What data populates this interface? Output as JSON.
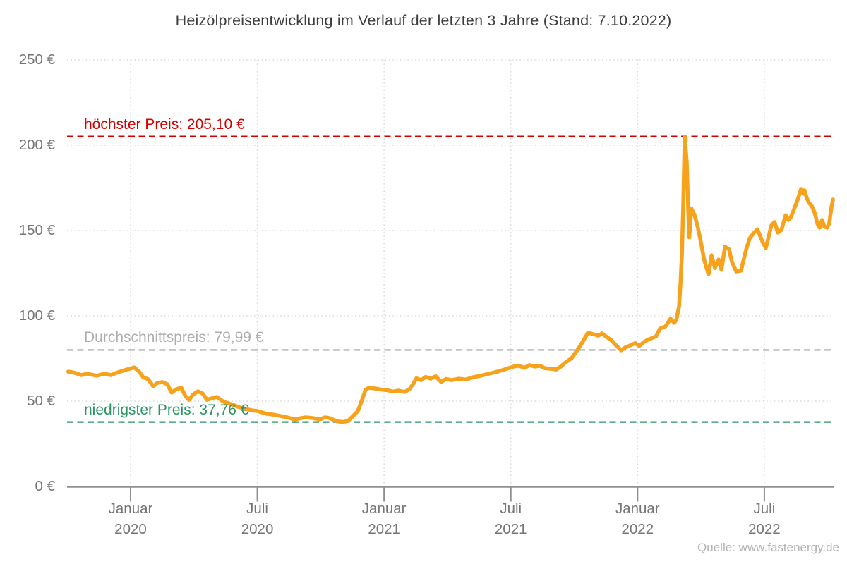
{
  "chart_data": {
    "type": "line",
    "title": "Heizölpreisentwicklung im Verlauf der letzten 3 Jahre (Stand: 7.10.2022)",
    "source": "Quelle: www.fastenergy.de",
    "x_axis": {
      "unit": "months since October 2019",
      "range": [
        0,
        36.3
      ],
      "ticks": [
        {
          "t": 3,
          "month": "Januar",
          "year": "2020"
        },
        {
          "t": 9,
          "month": "Juli",
          "year": "2020"
        },
        {
          "t": 15,
          "month": "Januar",
          "year": "2021"
        },
        {
          "t": 21,
          "month": "Juli",
          "year": "2021"
        },
        {
          "t": 27,
          "month": "Januar",
          "year": "2022"
        },
        {
          "t": 33,
          "month": "Juli",
          "year": "2022"
        }
      ]
    },
    "y_axis": {
      "unit": "€",
      "range": [
        0,
        250
      ],
      "ticks": [
        {
          "value": 0,
          "label": "0 €"
        },
        {
          "value": 50,
          "label": "50 €"
        },
        {
          "value": 100,
          "label": "100 €"
        },
        {
          "value": 150,
          "label": "150 €"
        },
        {
          "value": 200,
          "label": "200 €"
        },
        {
          "value": 250,
          "label": "250 €"
        }
      ]
    },
    "grid": true,
    "legend_position": "none",
    "annotations": [
      {
        "id": "max",
        "label": "höchster Preis: 205,10 €",
        "value": 205.1,
        "line_color": "#d40000",
        "text_color": "#d40000"
      },
      {
        "id": "avg",
        "label": "Durchschnittspreis: 79,99 €",
        "value": 79.99,
        "line_color": "#a3a3a3",
        "text_color": "#adadad"
      },
      {
        "id": "min",
        "label": "niedrigster Preis: 37,76 €",
        "value": 37.76,
        "line_color": "#2e9464",
        "text_color": "#2e9464"
      }
    ],
    "series": [
      {
        "name": "Heizölpreis",
        "color": "#f7a21b",
        "points": [
          [
            0.05,
            67.3
          ],
          [
            0.27,
            66.9
          ],
          [
            0.67,
            65.3
          ],
          [
            0.93,
            66.1
          ],
          [
            1.4,
            64.9
          ],
          [
            1.76,
            66.1
          ],
          [
            2.07,
            65.3
          ],
          [
            2.4,
            66.9
          ],
          [
            2.73,
            68.2
          ],
          [
            3.17,
            69.8
          ],
          [
            3.4,
            67.4
          ],
          [
            3.6,
            64.0
          ],
          [
            3.84,
            62.8
          ],
          [
            4.07,
            58.7
          ],
          [
            4.27,
            60.7
          ],
          [
            4.5,
            61.2
          ],
          [
            4.74,
            59.9
          ],
          [
            4.94,
            55.0
          ],
          [
            5.17,
            57.0
          ],
          [
            5.4,
            57.9
          ],
          [
            5.6,
            52.9
          ],
          [
            5.78,
            50.8
          ],
          [
            5.94,
            53.7
          ],
          [
            6.18,
            55.8
          ],
          [
            6.41,
            54.5
          ],
          [
            6.62,
            50.8
          ],
          [
            6.85,
            51.7
          ],
          [
            7.08,
            52.5
          ],
          [
            7.41,
            49.6
          ],
          [
            7.74,
            48.3
          ],
          [
            8.08,
            46.7
          ],
          [
            8.42,
            45.5
          ],
          [
            8.75,
            44.6
          ],
          [
            9.01,
            44.2
          ],
          [
            9.42,
            42.6
          ],
          [
            9.75,
            42.1
          ],
          [
            10.08,
            41.3
          ],
          [
            10.41,
            40.5
          ],
          [
            10.76,
            39.3
          ],
          [
            11.09,
            40.1
          ],
          [
            11.29,
            40.5
          ],
          [
            11.62,
            40.1
          ],
          [
            11.96,
            39.3
          ],
          [
            12.19,
            40.5
          ],
          [
            12.42,
            40.1
          ],
          [
            12.76,
            38.2
          ],
          [
            13.06,
            37.76
          ],
          [
            13.29,
            38.4
          ],
          [
            13.53,
            41.3
          ],
          [
            13.76,
            44.2
          ],
          [
            13.96,
            50.8
          ],
          [
            14.12,
            56.6
          ],
          [
            14.29,
            57.9
          ],
          [
            14.53,
            57.5
          ],
          [
            14.86,
            56.8
          ],
          [
            15.16,
            56.4
          ],
          [
            15.43,
            55.6
          ],
          [
            15.69,
            56.2
          ],
          [
            15.97,
            55.4
          ],
          [
            16.2,
            57.0
          ],
          [
            16.4,
            60.5
          ],
          [
            16.53,
            63.4
          ],
          [
            16.76,
            62.3
          ],
          [
            16.97,
            64.2
          ],
          [
            17.2,
            63.2
          ],
          [
            17.44,
            64.6
          ],
          [
            17.7,
            61.2
          ],
          [
            17.93,
            63.0
          ],
          [
            18.2,
            62.3
          ],
          [
            18.54,
            63.2
          ],
          [
            18.87,
            62.7
          ],
          [
            19.21,
            64.0
          ],
          [
            19.54,
            64.8
          ],
          [
            19.97,
            66.1
          ],
          [
            20.37,
            67.3
          ],
          [
            20.71,
            68.6
          ],
          [
            21.11,
            70.2
          ],
          [
            21.38,
            70.8
          ],
          [
            21.64,
            69.5
          ],
          [
            21.88,
            71.1
          ],
          [
            22.15,
            70.3
          ],
          [
            22.38,
            70.8
          ],
          [
            22.61,
            69.3
          ],
          [
            22.88,
            69.0
          ],
          [
            23.15,
            68.5
          ],
          [
            23.39,
            70.5
          ],
          [
            23.55,
            72.3
          ],
          [
            23.88,
            75.2
          ],
          [
            24.21,
            81.0
          ],
          [
            24.46,
            86.0
          ],
          [
            24.65,
            90.1
          ],
          [
            24.89,
            89.3
          ],
          [
            25.15,
            88.4
          ],
          [
            25.32,
            89.7
          ],
          [
            25.55,
            87.5
          ],
          [
            25.78,
            85.5
          ],
          [
            25.96,
            83.0
          ],
          [
            26.22,
            79.8
          ],
          [
            26.42,
            81.5
          ],
          [
            26.62,
            82.5
          ],
          [
            26.89,
            84.0
          ],
          [
            27.08,
            82.3
          ],
          [
            27.28,
            84.5
          ],
          [
            27.48,
            86.0
          ],
          [
            27.68,
            87.0
          ],
          [
            27.88,
            88.0
          ],
          [
            28.06,
            92.5
          ],
          [
            28.32,
            93.8
          ],
          [
            28.56,
            98.3
          ],
          [
            28.73,
            95.9
          ],
          [
            28.83,
            97.5
          ],
          [
            28.96,
            105.4
          ],
          [
            29.03,
            118.6
          ],
          [
            29.1,
            137.0
          ],
          [
            29.16,
            165.0
          ],
          [
            29.23,
            205.1
          ],
          [
            29.33,
            190.0
          ],
          [
            29.39,
            165.0
          ],
          [
            29.45,
            146.0
          ],
          [
            29.54,
            163.0
          ],
          [
            29.7,
            159.0
          ],
          [
            29.85,
            152.0
          ],
          [
            30.0,
            143.0
          ],
          [
            30.15,
            133.0
          ],
          [
            30.29,
            127.0
          ],
          [
            30.36,
            124.5
          ],
          [
            30.5,
            135.5
          ],
          [
            30.66,
            128.0
          ],
          [
            30.84,
            133.0
          ],
          [
            30.97,
            127.0
          ],
          [
            31.14,
            140.5
          ],
          [
            31.33,
            139.0
          ],
          [
            31.47,
            131.5
          ],
          [
            31.67,
            126.0
          ],
          [
            31.9,
            126.5
          ],
          [
            32.0,
            132.0
          ],
          [
            32.14,
            139.0
          ],
          [
            32.31,
            145.5
          ],
          [
            32.47,
            148.0
          ],
          [
            32.67,
            150.8
          ],
          [
            32.9,
            143.8
          ],
          [
            33.07,
            139.7
          ],
          [
            33.33,
            152.9
          ],
          [
            33.48,
            155.0
          ],
          [
            33.64,
            148.8
          ],
          [
            33.81,
            150.3
          ],
          [
            34.01,
            159.0
          ],
          [
            34.13,
            156.2
          ],
          [
            34.24,
            157.5
          ],
          [
            34.43,
            163.2
          ],
          [
            34.59,
            168.6
          ],
          [
            34.74,
            174.4
          ],
          [
            34.84,
            171.5
          ],
          [
            34.9,
            173.6
          ],
          [
            35.0,
            169.4
          ],
          [
            35.1,
            166.5
          ],
          [
            35.24,
            164.5
          ],
          [
            35.39,
            160.3
          ],
          [
            35.52,
            153.7
          ],
          [
            35.62,
            151.7
          ],
          [
            35.73,
            156.2
          ],
          [
            35.85,
            152.1
          ],
          [
            35.97,
            151.7
          ],
          [
            36.07,
            154.1
          ],
          [
            36.17,
            163.2
          ],
          [
            36.25,
            168.2
          ]
        ]
      }
    ]
  }
}
